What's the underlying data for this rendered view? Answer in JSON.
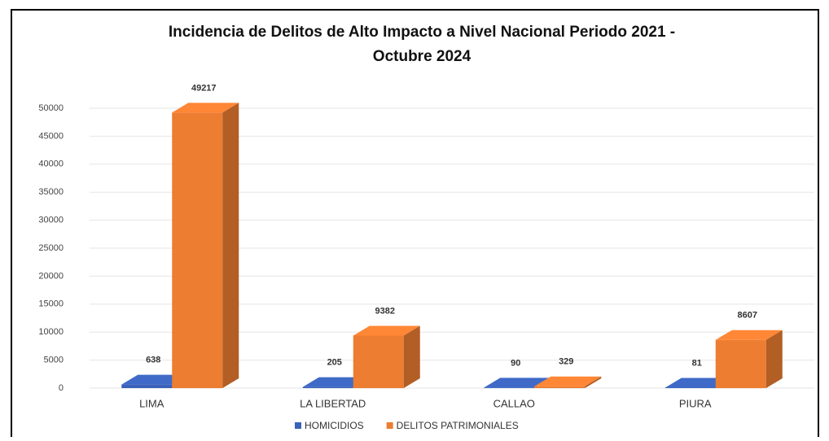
{
  "chart_data": {
    "type": "bar",
    "title": "Incidencia de Delitos de Alto Impacto a Nivel Nacional Periodo 2021 - Octubre 2024",
    "categories": [
      "LIMA",
      "LA LIBERTAD",
      "CALLAO",
      "PIURA"
    ],
    "series": [
      {
        "name": "HOMICIDIOS",
        "color": "#3a62b8",
        "values": [
          638,
          205,
          90,
          81
        ]
      },
      {
        "name": "DELITOS PATRIMONIALES",
        "color": "#ed7d31",
        "values": [
          49217,
          9382,
          329,
          8607
        ]
      }
    ],
    "ylim": [
      0,
      50000
    ],
    "yticks": [
      0,
      5000,
      10000,
      15000,
      20000,
      25000,
      30000,
      35000,
      40000,
      45000,
      50000
    ],
    "grid": true,
    "legend": "bottom"
  }
}
